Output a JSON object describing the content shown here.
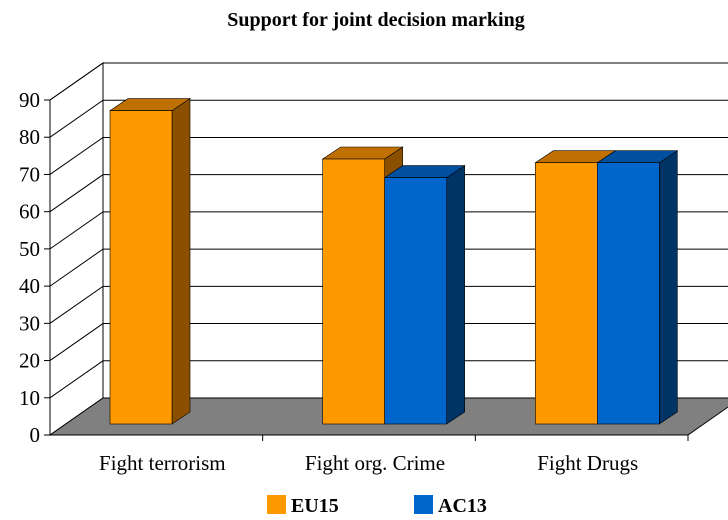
{
  "chart_data": {
    "type": "bar",
    "title": "Support for joint decision marking",
    "categories": [
      "Fight terrorism",
      "Fight org. Crime",
      "Fight Drugs"
    ],
    "series": [
      {
        "name": "EU15",
        "values": [
          85,
          72,
          71
        ],
        "color": "#FF9900",
        "side_color": "#8A5000",
        "top_color": "#C07000"
      },
      {
        "name": "AC13",
        "values": [
          null,
          67,
          71
        ],
        "color": "#0066CC",
        "side_color": "#003366",
        "top_color": "#00509F"
      }
    ],
    "ylim": [
      0,
      90
    ],
    "yticks": [
      0,
      10,
      20,
      30,
      40,
      50,
      60,
      70,
      80,
      90
    ],
    "grid": true,
    "legend_position": "bottom"
  }
}
